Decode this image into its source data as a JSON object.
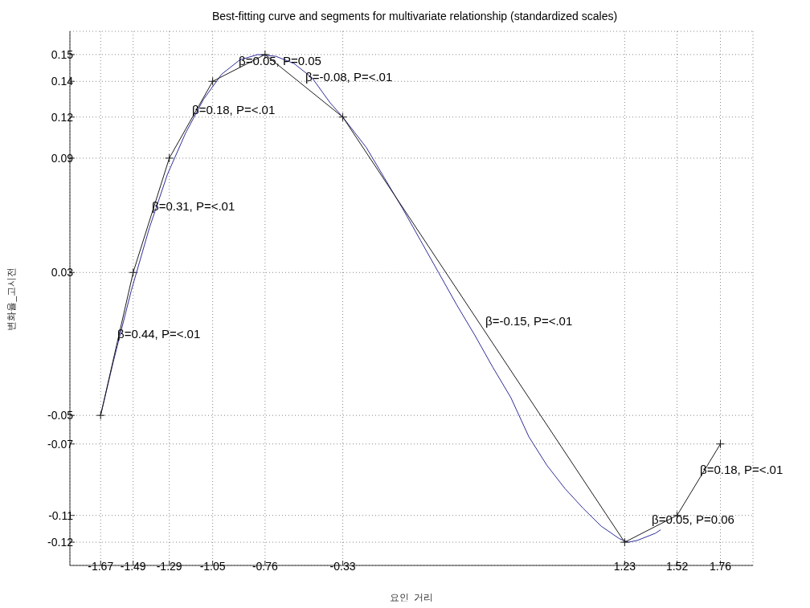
{
  "chart_data": {
    "type": "line",
    "title": "Best-fitting curve and segments for multivariate relationship (standardized scales)",
    "xlabel": "요인_거리",
    "ylabel": "변화율_고시전",
    "xlim": [
      -1.84,
      1.94
    ],
    "xticks": [
      -1.67,
      -1.49,
      -1.29,
      -1.05,
      -0.76,
      -0.33,
      1.23,
      1.52,
      1.76
    ],
    "ylim": [
      -0.134,
      0.165
    ],
    "yticks": [
      {
        "value": -0.121,
        "label": "-0.12"
      },
      {
        "value": -0.106,
        "label": "-0.11"
      },
      {
        "value": -0.066,
        "label": "-0.07"
      },
      {
        "value": -0.05,
        "label": "-0.05"
      },
      {
        "value": 0.03,
        "label": "0.03"
      },
      {
        "value": 0.094,
        "label": "0.09"
      },
      {
        "value": 0.117,
        "label": "0.12"
      },
      {
        "value": 0.137,
        "label": "0.14"
      },
      {
        "value": 0.152,
        "label": "0.15"
      }
    ],
    "grid": true,
    "legend": false,
    "series": [
      {
        "color": "#2e2e9a",
        "marker": "none",
        "line_style": "solid",
        "x": [
          -1.67,
          -1.6,
          -1.5,
          -1.4,
          -1.3,
          -1.2,
          -1.1,
          -1.0,
          -0.9,
          -0.8,
          -0.7,
          -0.6,
          -0.5,
          -0.4,
          -0.33,
          -0.2,
          -0.1,
          0.0,
          0.1,
          0.2,
          0.3,
          0.4,
          0.5,
          0.6,
          0.7,
          0.8,
          0.9,
          1.0,
          1.1,
          1.2,
          1.25,
          1.3,
          1.4,
          1.43
        ],
        "values": [
          -0.05,
          -0.02,
          0.02,
          0.055,
          0.085,
          0.108,
          0.127,
          0.141,
          0.149,
          0.152,
          0.151,
          0.147,
          0.139,
          0.125,
          0.117,
          0.1,
          0.083,
          0.066,
          0.048,
          0.03,
          0.012,
          -0.005,
          -0.023,
          -0.04,
          -0.062,
          -0.078,
          -0.091,
          -0.102,
          -0.112,
          -0.119,
          -0.121,
          -0.12,
          -0.116,
          -0.114
        ]
      },
      {
        "color": "#1a1a1a",
        "marker": "cross",
        "line_style": "solid",
        "x": [
          -1.67,
          -1.49,
          -1.29,
          -1.05,
          -0.76,
          -0.33,
          1.23,
          1.52,
          1.76
        ],
        "values": [
          -0.05,
          0.03,
          0.094,
          0.137,
          0.152,
          0.117,
          -0.121,
          -0.106,
          -0.066
        ]
      }
    ],
    "annotations": [
      "β=0.05, P=0.05",
      "β=-0.08, P=<.01",
      "β=0.18, P=<.01",
      "β=0.31, P=<.01",
      "β=0.44, P=<.01",
      "β=-0.15, P=<.01",
      "β=0.05, P=0.06",
      "β=0.18, P=<.01"
    ]
  }
}
